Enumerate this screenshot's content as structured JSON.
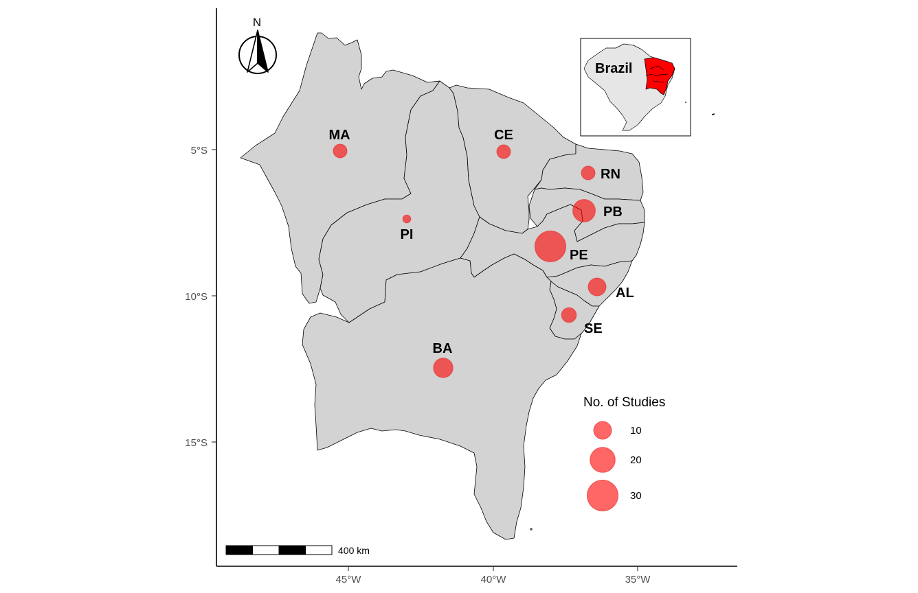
{
  "map": {
    "x_axis_ticks": [
      {
        "label": "45°W",
        "lon": -45
      },
      {
        "label": "40°W",
        "lon": -40
      },
      {
        "label": "35°W",
        "lon": -35
      }
    ],
    "y_axis_ticks": [
      {
        "label": "5°S",
        "lat": -5
      },
      {
        "label": "10°S",
        "lat": -10
      },
      {
        "label": "15°S",
        "lat": -15
      }
    ],
    "north_arrow_label": "N",
    "scale_bar_label": "400 km",
    "inset": {
      "label": "Brazil",
      "highlight_color": "#ff0000",
      "base_color": "#e6e6e6"
    },
    "state_fill_color": "#d3d3d3",
    "bubble_color": "#ff0000",
    "states": [
      {
        "code": "MA",
        "studies": 6
      },
      {
        "code": "PI",
        "studies": 2
      },
      {
        "code": "CE",
        "studies": 6
      },
      {
        "code": "RN",
        "studies": 6
      },
      {
        "code": "PB",
        "studies": 16
      },
      {
        "code": "PE",
        "studies": 30
      },
      {
        "code": "AL",
        "studies": 10
      },
      {
        "code": "SE",
        "studies": 7
      },
      {
        "code": "BA",
        "studies": 12
      }
    ],
    "legend": {
      "title": "No. of Studies",
      "items": [
        {
          "label": "10",
          "value": 10
        },
        {
          "label": "20",
          "value": 20
        },
        {
          "label": "30",
          "value": 30
        }
      ]
    }
  }
}
